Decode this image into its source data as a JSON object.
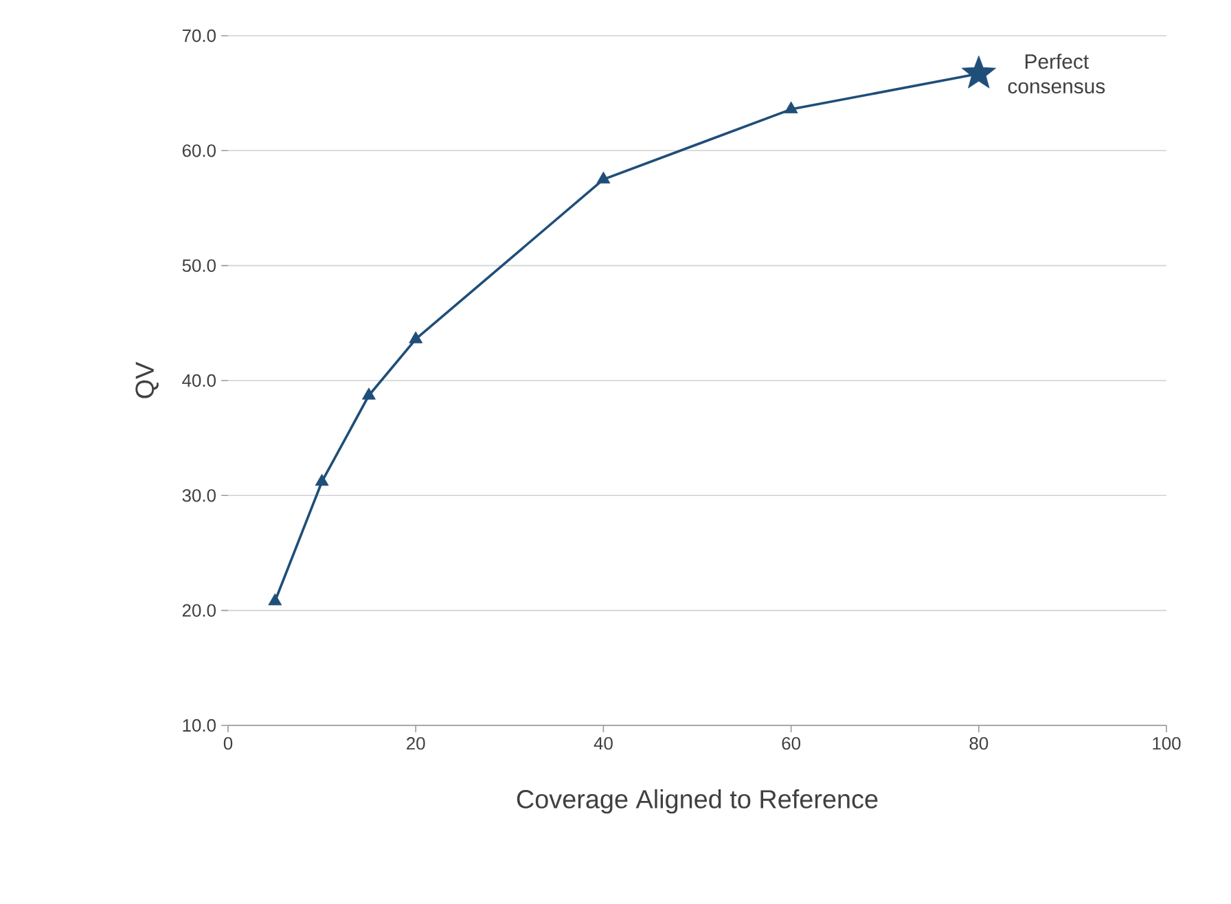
{
  "chart_data": {
    "type": "line",
    "xlabel": "Coverage Aligned to Reference",
    "ylabel": "QV",
    "xlim": [
      0,
      100
    ],
    "xticks": [
      0,
      20,
      40,
      60,
      80,
      100
    ],
    "ylim": [
      10,
      70
    ],
    "yticks": [
      {
        "value": 10,
        "label": "10.0"
      },
      {
        "value": 20,
        "label": "20.0"
      },
      {
        "value": 30,
        "label": "30.0"
      },
      {
        "value": 40,
        "label": "40.0"
      },
      {
        "value": 50,
        "label": "50.0"
      },
      {
        "value": 60,
        "label": "60.0"
      },
      {
        "value": 70,
        "label": "70.0"
      }
    ],
    "grid": "y",
    "series": [
      {
        "color": "#1f4e79",
        "marker": "none",
        "x": [
          5,
          10,
          15,
          20,
          40,
          60,
          80
        ],
        "values": [
          20.8,
          31.2,
          38.7,
          43.6,
          57.5,
          63.6,
          66.7
        ]
      },
      {
        "type": "scatter",
        "color": "#1f4e79",
        "marker": "triangle",
        "x": [
          5,
          10,
          15,
          20,
          40,
          60
        ],
        "values": [
          20.8,
          31.2,
          38.7,
          43.6,
          57.5,
          63.6
        ]
      },
      {
        "type": "scatter",
        "color": "#1f4e79",
        "marker": "star",
        "x": [
          80
        ],
        "values": [
          66.7
        ]
      }
    ],
    "annotations": [
      {
        "text": "Perfect consensus",
        "x": 80,
        "y": 66.7
      }
    ]
  }
}
